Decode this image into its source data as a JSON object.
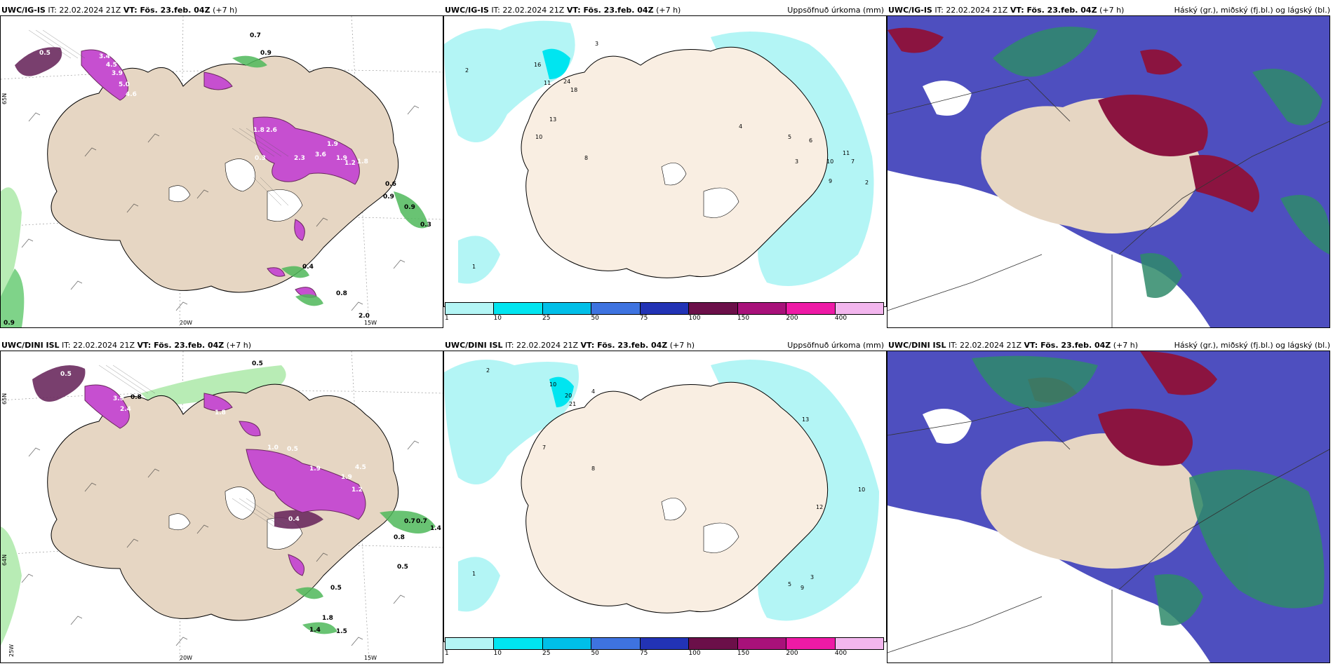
{
  "rows": [
    {
      "row_id": "ig",
      "panels": [
        {
          "title_model": "UWC/IG-IS",
          "title_it": " IT: 22.02.2024 21Z ",
          "title_vt_label": "VT:",
          "title_vt": " Fös. 23.feb. 04Z",
          "title_lead": " (+7 h)",
          "right_title": ""
        },
        {
          "title_model": "UWC/IG-IS",
          "title_it": " IT: 22.02.2024 21Z ",
          "title_vt_label": "VT:",
          "title_vt": " Fös. 23.feb. 04Z",
          "title_lead": " (+7 h)",
          "right_title": "Uppsöfnuð úrkoma (mm)"
        },
        {
          "title_model": "UWC/IG-IS",
          "title_it": " IT: 22.02.2024 21Z ",
          "title_vt_label": "VT:",
          "title_vt": " Fös. 23.feb. 04Z",
          "title_lead": " (+7 h)",
          "right_title": "Háský (gr.), miðský (fj.bl.) og lágský (bl.)"
        }
      ],
      "precip_labels": [
        "0.5",
        "3.4",
        "4.5",
        "3.9",
        "5.0",
        "4.6",
        "0.7",
        "0.9",
        "1.8",
        "2.6",
        "1.9",
        "3.6",
        "2.3",
        "1.9",
        "1.8",
        "1.2",
        "0.9",
        "0.6",
        "0.3",
        "0.3",
        "0.9",
        "0.4",
        "0.8",
        "2.0",
        "0.9"
      ],
      "accum_labels": [
        "2",
        "3",
        "16",
        "24",
        "18",
        "11",
        "13",
        "10",
        "8",
        "4",
        "3",
        "6",
        "5",
        "9",
        "10",
        "11",
        "7",
        "2",
        "1"
      ]
    },
    {
      "row_id": "dini",
      "panels": [
        {
          "title_model": "UWC/DINI ISL",
          "title_it": " IT: 22.02.2024 21Z ",
          "title_vt_label": "VT:",
          "title_vt": " Fös. 23.feb. 04Z",
          "title_lead": " (+7 h)",
          "right_title": ""
        },
        {
          "title_model": "UWC/DINI ISL",
          "title_it": " IT: 22.02.2024 21Z ",
          "title_vt_label": "VT:",
          "title_vt": " Fös. 23.feb. 04Z",
          "title_lead": " (+7 h)",
          "right_title": "Uppsöfnuð úrkoma (mm)"
        },
        {
          "title_model": "UWC/DINI ISL",
          "title_it": " IT: 22.02.2024 21Z ",
          "title_vt_label": "VT:",
          "title_vt": " Fös. 23.feb. 04Z",
          "title_lead": " (+7 h)",
          "right_title": "Háský (gr.), miðský (fj.bl.) og lágský (bl.)"
        }
      ],
      "precip_labels": [
        "0.5",
        "1.3",
        "3.9",
        "2.4",
        "0.8",
        "0.5",
        "1.8",
        "1.0",
        "0.5",
        "1.9",
        "4.5",
        "1.9",
        "1.2",
        "0.7",
        "0.4",
        "0.8",
        "0.7",
        "1.4",
        "0.5",
        "0.8",
        "0.5",
        "1.4",
        "1.8",
        "1.5"
      ],
      "accum_labels": [
        "2",
        "10",
        "20",
        "21",
        "4",
        "7",
        "8",
        "13",
        "12",
        "10",
        "9",
        "5",
        "3",
        "1"
      ]
    }
  ],
  "axis_labels": {
    "lat": "65N",
    "lat2": "64N",
    "lon1": "20W",
    "lon2": "15W",
    "lon3": "25W"
  },
  "colorbar": {
    "ticks": [
      "1",
      "10",
      "25",
      "50",
      "75",
      "100",
      "150",
      "200",
      "400"
    ],
    "colors": [
      "#b3f5f5",
      "#00e5f0",
      "#00bfe8",
      "#3e73e0",
      "#2233b5",
      "#6b0f49",
      "#a8117a",
      "#ee1aa6",
      "#f3b6ee"
    ]
  },
  "colors": {
    "land": "#e6d6c3",
    "land_light": "#f9eee2",
    "sea": "#ffffff",
    "precip_magenta": "#c64fd0",
    "precip_dark": "#6a2a5e",
    "precip_green": "#4fb85a",
    "cloud_high": "#2f8a6a",
    "cloud_mid": "#8b1440",
    "cloud_low": "#4e4fbf",
    "accum_cyan": "#b3f5f5"
  }
}
